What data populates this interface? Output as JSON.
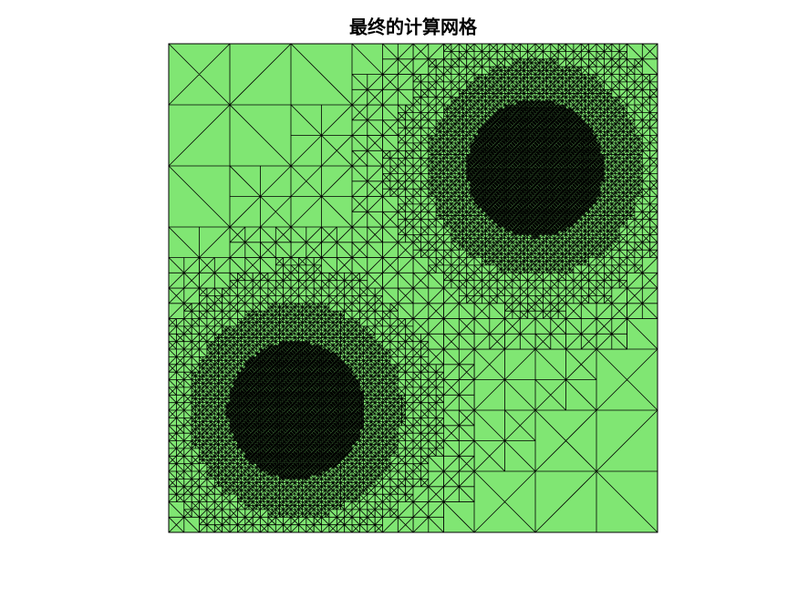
{
  "title": "最终的计算网格"
}
